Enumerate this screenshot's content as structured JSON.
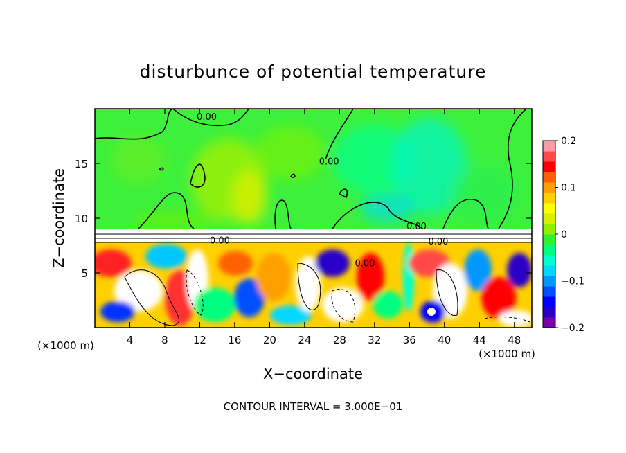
{
  "chart_data": {
    "type": "heatmap",
    "title": "disturbunce of potential temperature",
    "xlabel": "X−coordinate",
    "ylabel": "Z−coordinate",
    "x_unit_label": "(×1000 m)",
    "z_unit_label": "(×1000 m)",
    "footer": "CONTOUR INTERVAL = 3.000E−01",
    "x_range": [
      0,
      50
    ],
    "z_range": [
      0,
      20
    ],
    "x_ticks": [
      4,
      8,
      12,
      16,
      20,
      24,
      28,
      32,
      36,
      40,
      44,
      48
    ],
    "z_ticks": [
      5,
      10,
      15
    ],
    "x_tick_labels": [
      "4",
      "8",
      "12",
      "16",
      "20",
      "24",
      "28",
      "32",
      "36",
      "40",
      "44",
      "48"
    ],
    "z_tick_labels": [
      "5",
      "10",
      "15"
    ],
    "colorbar": {
      "min": -0.2,
      "max": 0.2,
      "tick_values": [
        0.2,
        0.1,
        0,
        -0.1,
        -0.2
      ],
      "tick_labels": [
        "0.2",
        "0.1",
        "0",
        "−0.1",
        "−0.2"
      ],
      "colors": [
        "#7a00a8",
        "#2a00c8",
        "#0000ff",
        "#0050ff",
        "#0098ff",
        "#00d8ff",
        "#00ffd0",
        "#00ff80",
        "#30f030",
        "#90f000",
        "#d8f000",
        "#ffff00",
        "#ffd000",
        "#ffa000",
        "#ff6000",
        "#ff0000",
        "#ff4a4a",
        "#ff9aa8"
      ]
    },
    "contour_labels": [
      {
        "text": "0.00",
        "x": 12.8,
        "z": 19.0
      },
      {
        "text": "0.00",
        "x": 26.8,
        "z": 14.9
      },
      {
        "text": "0.00",
        "x": 36.8,
        "z": 9.0
      },
      {
        "text": "0.00",
        "x": 14.3,
        "z": 7.7
      },
      {
        "text": "0.00",
        "x": 39.3,
        "z": 7.6
      },
      {
        "text": "0.00",
        "x": 30.9,
        "z": 5.6
      }
    ]
  }
}
